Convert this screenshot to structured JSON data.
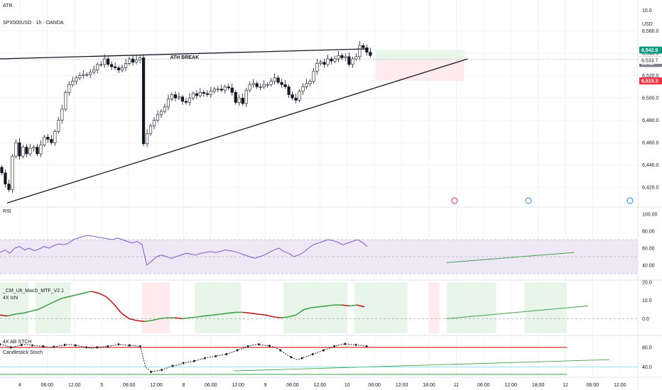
{
  "header": {
    "top_label": "ATR",
    "symbol_label": "SPX500USD · 1h · OANDA",
    "currency": "USD"
  },
  "chart_data": [
    {
      "type": "candlestick",
      "name": "SPX500USD",
      "ylim": [
        6410,
        6575
      ],
      "yticks": [
        6420,
        6440,
        6460,
        6480,
        6500,
        6520,
        6540,
        6560
      ],
      "top_value": "10.0",
      "x_index_range": [
        0,
        160
      ],
      "closes": [
        6433,
        6423,
        6418,
        6448,
        6460,
        6448,
        6456,
        6450,
        6455,
        6456,
        6450,
        6458,
        6465,
        6463,
        6460,
        6470,
        6480,
        6490,
        6505,
        6512,
        6515,
        6518,
        6520,
        6521,
        6521,
        6523,
        6525,
        6530,
        6530,
        6535,
        6530,
        6528,
        6527,
        6525,
        6527,
        6531,
        6535,
        6532,
        6534,
        6536,
        6459,
        6468,
        6475,
        6480,
        6485,
        6488,
        6492,
        6499,
        6503,
        6500,
        6501,
        6497,
        6496,
        6500,
        6504,
        6502,
        6505,
        6504,
        6503,
        6506,
        6508,
        6508,
        6507,
        6510,
        6509,
        6505,
        6496,
        6500,
        6495,
        6507,
        6512,
        6513,
        6510,
        6510,
        6512,
        6512,
        6515,
        6518,
        6514,
        6512,
        6510,
        6503,
        6500,
        6498,
        6506,
        6510,
        6513,
        6515,
        6524,
        6531,
        6532,
        6530,
        6535,
        6533,
        6535,
        6538,
        6536,
        6537,
        6530,
        6535,
        6537,
        6547,
        6545,
        6541,
        6538
      ],
      "ath_price": 6534.5,
      "ath_label": "ATH BREAK",
      "position_entry": 6534.5,
      "target": 6542.9,
      "stop": 6515.3,
      "price_tags": [
        {
          "value": 6542.9,
          "text": "6,542.9",
          "color": "#089981"
        },
        {
          "value": 6533.9,
          "text": "6,533.9",
          "color": "#787b86"
        },
        {
          "value": 6531.0,
          "text": "30:46",
          "color": "#787b86"
        },
        {
          "value": 6533.7,
          "text": "6,533.7",
          "color": "#ffffff"
        },
        {
          "value": 6515.3,
          "text": "6,515.3",
          "color": "#f23645"
        }
      ],
      "trendlines": [
        {
          "x": [
            0,
            104
          ],
          "y": [
            6535,
            6544
          ]
        },
        {
          "x": [
            2,
            132
          ],
          "y": [
            6406,
            6535
          ]
        }
      ]
    },
    {
      "type": "line",
      "name": "RSI",
      "ylim": [
        25,
        105
      ],
      "yticks": [
        40,
        60,
        80,
        100
      ],
      "bands": [
        30,
        50,
        70
      ],
      "values": [
        55,
        58,
        54,
        60,
        62,
        58,
        60,
        57,
        59,
        62,
        60,
        63,
        65,
        64,
        66,
        70,
        72,
        74,
        75,
        74,
        73,
        72,
        71,
        70,
        72,
        70,
        68,
        66,
        68,
        64,
        40,
        45,
        50,
        52,
        50,
        48,
        50,
        52,
        54,
        53,
        52,
        54,
        55,
        56,
        55,
        56,
        58,
        57,
        56,
        54,
        52,
        50,
        48,
        50,
        52,
        55,
        58,
        60,
        56,
        54,
        50,
        52,
        55,
        60,
        64,
        66,
        68,
        70,
        69,
        67,
        64,
        66,
        68,
        70,
        67,
        62
      ],
      "trendline": {
        "x": [
          126,
          162
        ],
        "y": [
          43,
          55
        ]
      }
    },
    {
      "type": "line",
      "name": "_CM_Ult_MacD_MTF_V2.1",
      "subtitle": "4X Ichi",
      "ylim": [
        -8,
        20
      ],
      "yticks": [
        0,
        10,
        20
      ],
      "values": [
        2,
        1.5,
        2.5,
        3,
        4,
        5,
        7,
        9,
        11,
        12,
        13,
        14,
        15,
        14,
        12,
        8,
        3,
        0,
        -1,
        -1.5,
        -1,
        0,
        0.5,
        0.5,
        0,
        0.5,
        1,
        1.5,
        2,
        2.5,
        3,
        3.5,
        3.5,
        3,
        2.5,
        2,
        1,
        0.5,
        1,
        2,
        5,
        6,
        6.5,
        7,
        7.5,
        7.5,
        7,
        7.5,
        6.5
      ],
      "trendline": {
        "x": [
          126,
          166
        ],
        "y": [
          0,
          7
        ]
      }
    },
    {
      "type": "line",
      "name": "4X AB STCH",
      "subtitle": "Candlestick Stoch",
      "ylim": [
        22,
        100
      ],
      "yticks": [
        40,
        80
      ],
      "values": [
        86,
        84,
        80,
        82,
        85,
        86,
        84,
        83,
        82,
        80,
        81,
        83,
        85,
        86,
        84,
        82,
        80,
        78,
        80,
        81,
        82,
        84,
        86,
        85,
        84,
        83,
        82,
        40,
        30,
        32,
        34,
        38,
        42,
        44,
        48,
        50,
        52,
        55,
        58,
        60,
        62,
        64,
        66,
        70,
        74,
        78,
        82,
        85,
        86,
        84,
        83,
        80,
        74,
        66,
        60,
        55,
        58,
        62,
        66,
        70,
        74,
        78,
        82,
        85,
        87,
        86,
        85,
        84,
        82
      ],
      "trendline": {
        "x": [
          66,
          172
        ],
        "y": [
          32,
          55
        ]
      }
    }
  ],
  "xaxis": {
    "labels": [
      "4",
      "06:00",
      "12:00",
      "5",
      "06:00",
      "12:00",
      "8",
      "06:00",
      "12:00",
      "9",
      "06:00",
      "12:00",
      "10",
      "06:00",
      "12:00",
      "18:00",
      "11",
      "06:00",
      "12:00",
      "18:00",
      "12",
      "06:00",
      "12:00"
    ]
  },
  "colors": {
    "rsi_line": "#7e57c2",
    "rsi_band": "#ede7f6",
    "macd_up": "#43a047",
    "macd_down": "#b71c1c",
    "stoch_line": "#212121",
    "stoch_red": "#d32f2f",
    "stoch_green": "#4caf50",
    "green_fill": "#e8f5e9",
    "red_fill": "#ffebee"
  }
}
